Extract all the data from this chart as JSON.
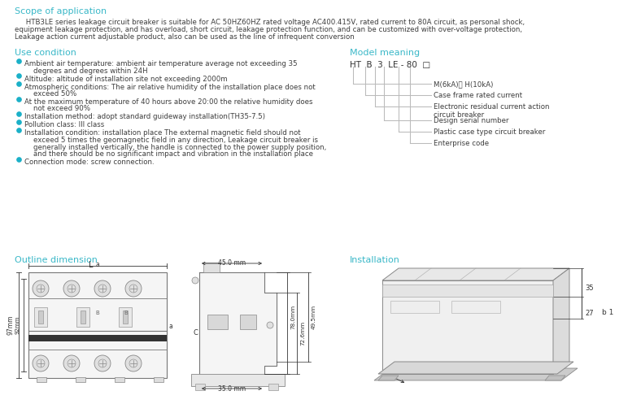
{
  "bg_color": "#ffffff",
  "section_title_color": "#3ab8c8",
  "body_text_color": "#3d3d3d",
  "gray_color": "#aaaaaa",
  "dark_color": "#333333",
  "line_color": "#aaaaaa",
  "scope_title": "Scope of application",
  "scope_body_1": "     HTB3LE series leakage circuit breaker is suitable for AC 50HZ60HZ rated voltage AC400.415V, rated current to 80A circuit, as personal shock,",
  "scope_body_2": "equipment leakage protection, and has overload, short circuit, leakage protection function, and can be customized with over-voltage protection,",
  "scope_body_3": "Leakage action current adjustable product, also can be used as the line of infrequent conversion",
  "use_title": "Use condition",
  "use_bullets": [
    "Ambient air temperature: ambient air temperature average not exceeding 35\n    degrees and degrees within 24H",
    "Altitude: altitude of installation site not exceeding 2000m",
    "Atmospheric conditions: The air relative humidity of the installation place does not\n    exceed 50%",
    "At the maximum temperature of 40 hours above 20:00 the relative humidity does\n    not exceed 90%",
    "Installation method: adopt standard guideway installation(TH35-7.5)",
    "Pollution class: III class",
    "Installation condition: installation place The external magnetic field should not\n    exceed 5 times the geomagnetic field in any direction, Leakage circuit breaker is\n    generally installed vertically, the handle is connected to the power supply position,\n    and there should be no significant impact and vibration in the installation place",
    "Connection mode: screw connection."
  ],
  "model_title": "Model meaning",
  "model_code": "HT  B  3  LE - 80  □",
  "model_labels": [
    "M(6kA)； H(10kA)",
    "Case frame rated current",
    "Electronic residual current action\ncircuit breaker",
    "Design serial number",
    "Plastic case type circuit breaker",
    "Enterprise code"
  ],
  "outline_title": "Outline dimension",
  "installation_title": "Installation",
  "dim_L": "L",
  "dim_a": "a",
  "dim_97mm": "97mm",
  "dim_92mm": "92mm",
  "dim_45mm": "45.0 mm",
  "dim_35mm": "35.0 mm",
  "dim_78mm": "78.0mm",
  "dim_726mm": "72.6mm",
  "dim_C": "C",
  "dim_495mm": "49.5mm",
  "inst_35": "35",
  "inst_27": "27",
  "inst_b1": "b 1"
}
